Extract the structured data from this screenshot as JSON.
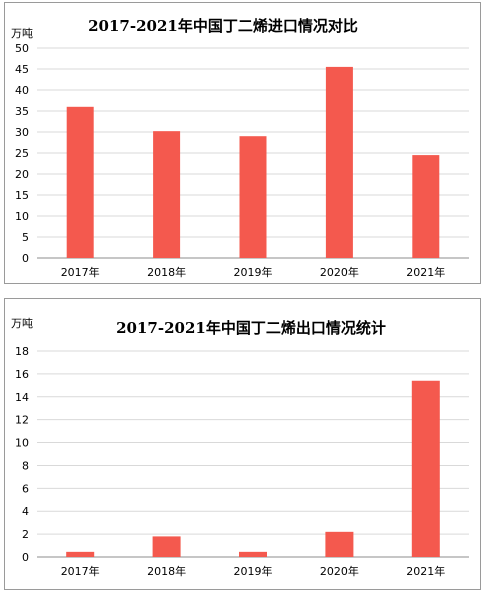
{
  "colors": {
    "bar": "#f4594e",
    "grid": "#d9d9d9",
    "axis": "#8c8c8c"
  },
  "chart_data": [
    {
      "type": "bar",
      "title": "2017-2021年中国丁二烯进口情况对比",
      "ylabel": "万吨",
      "xlabel": "",
      "categories": [
        "2017年",
        "2018年",
        "2019年",
        "2020年",
        "2021年"
      ],
      "values": [
        36,
        30.2,
        29,
        45.5,
        24.5
      ],
      "ylim": [
        0,
        50
      ],
      "yticks": [
        0,
        5,
        10,
        15,
        20,
        25,
        30,
        35,
        40,
        45,
        50
      ],
      "grid": true,
      "legend": "none"
    },
    {
      "type": "bar",
      "title": "2017-2021年中国丁二烯出口情况统计",
      "ylabel": "万吨",
      "xlabel": "",
      "categories": [
        "2017年",
        "2018年",
        "2019年",
        "2020年",
        "2021年"
      ],
      "values": [
        0.45,
        1.8,
        0.45,
        2.2,
        15.4
      ],
      "ylim": [
        0,
        18
      ],
      "yticks": [
        0,
        2,
        4,
        6,
        8,
        10,
        12,
        14,
        16,
        18
      ],
      "grid": true,
      "legend": "none"
    }
  ]
}
